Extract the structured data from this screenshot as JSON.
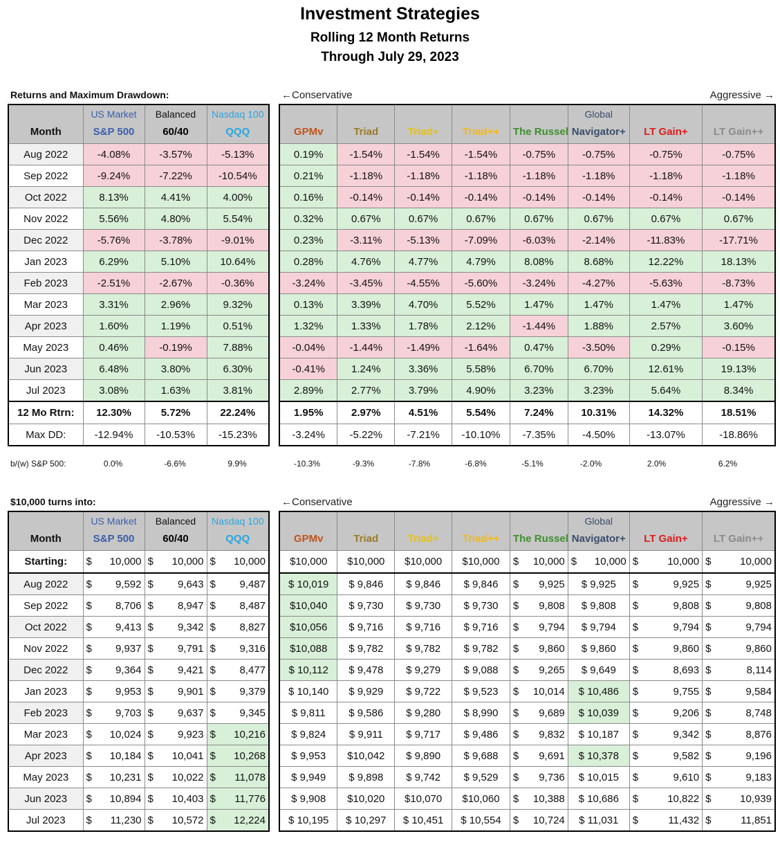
{
  "title": "Investment Strategies",
  "subtitle": "Rolling 12 Month Returns",
  "date_line": "Through July 29, 2023",
  "section1_label": "Returns and Maximum Drawdown:",
  "section2_label": "$10,000 turns into:",
  "conservative": "←Conservative",
  "aggressive": "Aggressive →",
  "month_header": "Month",
  "left_headers": [
    {
      "top": "US Market",
      "name": "S&P 500"
    },
    {
      "top": "Balanced",
      "name": "60/40"
    },
    {
      "top": "Nasdaq 100",
      "name": "QQQ"
    }
  ],
  "right_headers": [
    {
      "top": "",
      "name": "GPMv"
    },
    {
      "top": "",
      "name": "Triad"
    },
    {
      "top": "",
      "name": "Triad+"
    },
    {
      "top": "",
      "name": "Triad++"
    },
    {
      "top": "",
      "name": "The Russell"
    },
    {
      "top": "Global",
      "name": "Navigator+"
    },
    {
      "top": "",
      "name": "LT Gain+"
    },
    {
      "top": "",
      "name": "LT Gain++"
    }
  ],
  "months": [
    "Aug 2022",
    "Sep 2022",
    "Oct 2022",
    "Nov 2022",
    "Dec 2022",
    "Jan 2023",
    "Feb 2023",
    "Mar 2023",
    "Apr 2023",
    "May 2023",
    "Jun 2023",
    "Jul 2023"
  ],
  "returns_left": [
    [
      "-4.08%",
      "-3.57%",
      "-5.13%"
    ],
    [
      "-9.24%",
      "-7.22%",
      "-10.54%"
    ],
    [
      "8.13%",
      "4.41%",
      "4.00%"
    ],
    [
      "5.56%",
      "4.80%",
      "5.54%"
    ],
    [
      "-5.76%",
      "-3.78%",
      "-9.01%"
    ],
    [
      "6.29%",
      "5.10%",
      "10.64%"
    ],
    [
      "-2.51%",
      "-2.67%",
      "-0.36%"
    ],
    [
      "3.31%",
      "2.96%",
      "9.32%"
    ],
    [
      "1.60%",
      "1.19%",
      "0.51%"
    ],
    [
      "0.46%",
      "-0.19%",
      "7.88%"
    ],
    [
      "6.48%",
      "3.80%",
      "6.30%"
    ],
    [
      "3.08%",
      "1.63%",
      "3.81%"
    ]
  ],
  "returns_right": [
    [
      "0.19%",
      "-1.54%",
      "-1.54%",
      "-1.54%",
      "-0.75%",
      "-0.75%",
      "-0.75%",
      "-0.75%"
    ],
    [
      "0.21%",
      "-1.18%",
      "-1.18%",
      "-1.18%",
      "-1.18%",
      "-1.18%",
      "-1.18%",
      "-1.18%"
    ],
    [
      "0.16%",
      "-0.14%",
      "-0.14%",
      "-0.14%",
      "-0.14%",
      "-0.14%",
      "-0.14%",
      "-0.14%"
    ],
    [
      "0.32%",
      "0.67%",
      "0.67%",
      "0.67%",
      "0.67%",
      "0.67%",
      "0.67%",
      "0.67%"
    ],
    [
      "0.23%",
      "-3.11%",
      "-5.13%",
      "-7.09%",
      "-6.03%",
      "-2.14%",
      "-11.83%",
      "-17.71%"
    ],
    [
      "0.28%",
      "4.76%",
      "4.77%",
      "4.79%",
      "8.08%",
      "8.68%",
      "12.22%",
      "18.13%"
    ],
    [
      "-3.24%",
      "-3.45%",
      "-4.55%",
      "-5.60%",
      "-3.24%",
      "-4.27%",
      "-5.63%",
      "-8.73%"
    ],
    [
      "0.13%",
      "3.39%",
      "4.70%",
      "5.52%",
      "1.47%",
      "1.47%",
      "1.47%",
      "1.47%"
    ],
    [
      "1.32%",
      "1.33%",
      "1.78%",
      "2.12%",
      "-1.44%",
      "1.88%",
      "2.57%",
      "3.60%"
    ],
    [
      "-0.04%",
      "-1.44%",
      "-1.49%",
      "-1.64%",
      "0.47%",
      "-3.50%",
      "0.29%",
      "-0.15%"
    ],
    [
      "-0.41%",
      "1.24%",
      "3.36%",
      "5.58%",
      "6.70%",
      "6.70%",
      "12.61%",
      "19.13%"
    ],
    [
      "2.89%",
      "2.77%",
      "3.79%",
      "4.90%",
      "3.23%",
      "3.23%",
      "5.64%",
      "8.34%"
    ]
  ],
  "summary_label": "12 Mo Rtrn:",
  "summary_left": [
    "12.30%",
    "5.72%",
    "22.24%"
  ],
  "summary_right": [
    "1.95%",
    "2.97%",
    "4.51%",
    "5.54%",
    "7.24%",
    "10.31%",
    "14.32%",
    "18.51%"
  ],
  "maxdd_label": "Max DD:",
  "maxdd_left": [
    "-12.94%",
    "-10.53%",
    "-15.23%"
  ],
  "maxdd_right": [
    "-3.24%",
    "-5.22%",
    "-7.21%",
    "-10.10%",
    "-7.35%",
    "-4.50%",
    "-13.07%",
    "-18.86%"
  ],
  "bw_label": "b/(w) S&P 500:",
  "bw_left": [
    "0.0%",
    "-6.6%",
    "9.9%"
  ],
  "bw_right": [
    "-10.3%",
    "-9.3%",
    "-7.8%",
    "-6.8%",
    "-5.1%",
    "-2.0%",
    "2.0%",
    "6.2%"
  ],
  "starting_label": "Starting:",
  "starting_left": [
    "$",
    "10,000",
    "$",
    "10,000",
    "$",
    "10,000"
  ],
  "starting_right": [
    "$10,000",
    "$10,000",
    "$10,000",
    "$10,000",
    "$",
    "10,000",
    "$",
    "10,000",
    "$",
    "10,000",
    "$",
    "10,000"
  ],
  "growth_left": [
    [
      "9,592",
      "9,643",
      "9,487"
    ],
    [
      "8,706",
      "8,947",
      "8,487"
    ],
    [
      "9,413",
      "9,342",
      "8,827"
    ],
    [
      "9,937",
      "9,791",
      "9,316"
    ],
    [
      "9,364",
      "9,421",
      "8,477"
    ],
    [
      "9,953",
      "9,901",
      "9,379"
    ],
    [
      "9,703",
      "9,637",
      "9,345"
    ],
    [
      "10,024",
      "9,923",
      "10,216"
    ],
    [
      "10,184",
      "10,041",
      "10,268"
    ],
    [
      "10,231",
      "10,022",
      "11,078"
    ],
    [
      "10,894",
      "10,403",
      "11,776"
    ],
    [
      "11,230",
      "10,572",
      "12,224"
    ]
  ],
  "growth_right": [
    [
      "$ 10,019",
      "$ 9,846",
      "$ 9,846",
      "$ 9,846",
      "9,925",
      "$ 9,925",
      "9,925",
      "9,925"
    ],
    [
      "$10,040",
      "$ 9,730",
      "$ 9,730",
      "$ 9,730",
      "9,808",
      "$ 9,808",
      "9,808",
      "9,808"
    ],
    [
      "$10,056",
      "$ 9,716",
      "$ 9,716",
      "$ 9,716",
      "9,794",
      "$ 9,794",
      "9,794",
      "9,794"
    ],
    [
      "$10,088",
      "$ 9,782",
      "$ 9,782",
      "$ 9,782",
      "9,860",
      "$ 9,860",
      "9,860",
      "9,860"
    ],
    [
      "$ 10,112",
      "$ 9,478",
      "$ 9,279",
      "$ 9,088",
      "9,265",
      "$ 9,649",
      "8,693",
      "8,114"
    ],
    [
      "$ 10,140",
      "$ 9,929",
      "$ 9,722",
      "$ 9,523",
      "10,014",
      "$ 10,486",
      "9,755",
      "9,584"
    ],
    [
      "$ 9,811",
      "$ 9,586",
      "$ 9,280",
      "$ 8,990",
      "9,689",
      "$ 10,039",
      "9,206",
      "8,748"
    ],
    [
      "$ 9,824",
      "$ 9,911",
      "$ 9,717",
      "$ 9,486",
      "9,832",
      "$ 10,187",
      "9,342",
      "8,876"
    ],
    [
      "$ 9,953",
      "$10,042",
      "$ 9,890",
      "$ 9,688",
      "9,691",
      "$ 10,378",
      "9,582",
      "9,196"
    ],
    [
      "$ 9,949",
      "$ 9,898",
      "$ 9,742",
      "$ 9,529",
      "9,736",
      "$ 10,015",
      "9,610",
      "9,183"
    ],
    [
      "$ 9,908",
      "$10,020",
      "$10,070",
      "$10,060",
      "10,388",
      "$ 10,686",
      "10,822",
      "10,939"
    ],
    [
      "$ 10,195",
      "$ 10,297",
      "$ 10,451",
      "$ 10,554",
      "10,724",
      "$ 11,031",
      "11,432",
      "11,851"
    ]
  ]
}
